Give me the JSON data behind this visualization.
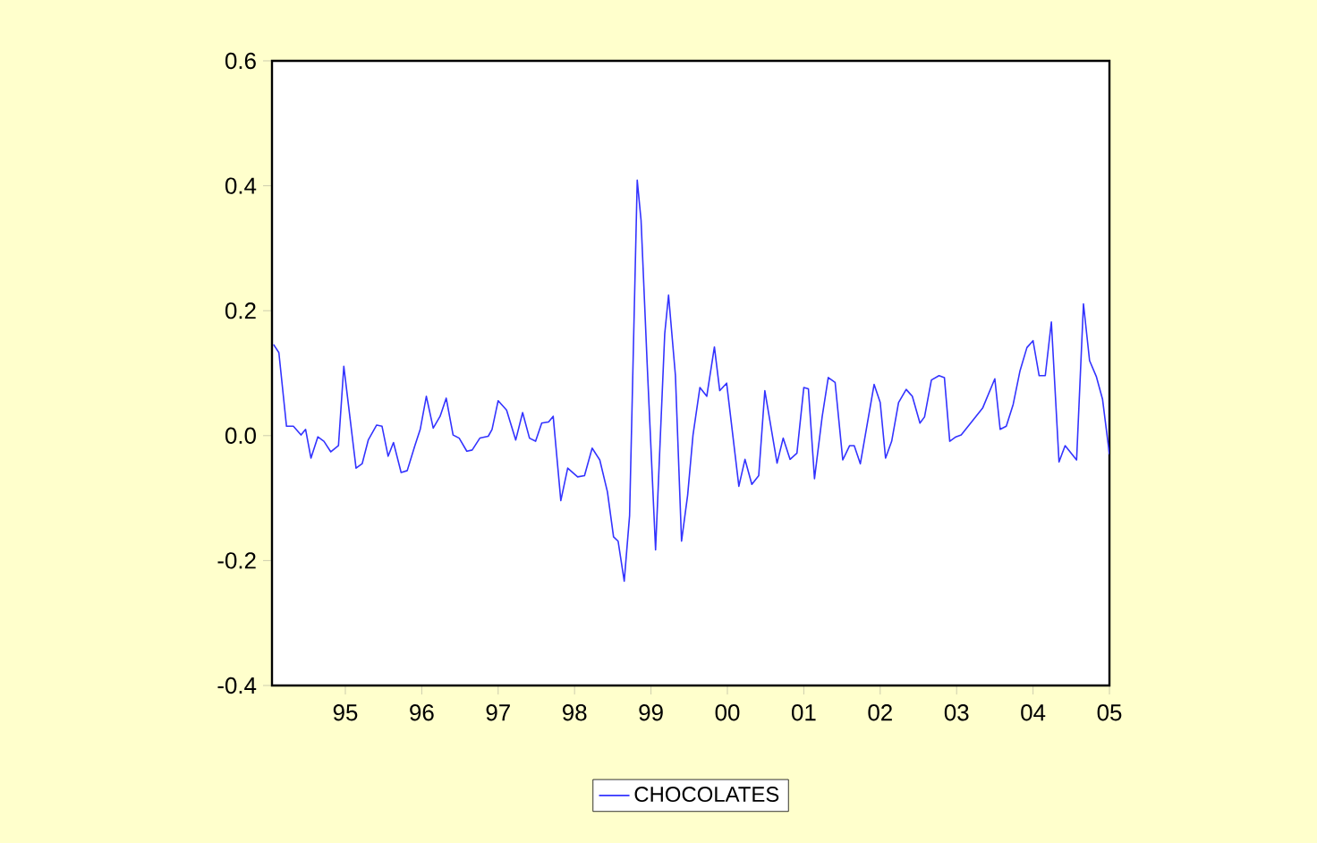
{
  "chart_data": {
    "type": "line",
    "x": [
      1994.06,
      1994.13,
      1994.23,
      1994.32,
      1994.42,
      1994.48,
      1994.55,
      1994.64,
      1994.72,
      1994.81,
      1994.91,
      1994.98,
      1995.14,
      1995.22,
      1995.3,
      1995.41,
      1995.48,
      1995.56,
      1995.63,
      1995.73,
      1995.81,
      1995.91,
      1995.98,
      1996.06,
      1996.15,
      1996.24,
      1996.32,
      1996.41,
      1996.49,
      1996.59,
      1996.66,
      1996.76,
      1996.87,
      1996.92,
      1997.0,
      1997.11,
      1997.23,
      1997.32,
      1997.41,
      1997.49,
      1997.57,
      1997.66,
      1997.72,
      1997.82,
      1997.91,
      1998.04,
      1998.13,
      1998.23,
      1998.33,
      1998.43,
      1998.51,
      1998.57,
      1998.65,
      1998.72,
      1998.76,
      1998.82,
      1998.87,
      1998.95,
      1999.06,
      1999.12,
      1999.18,
      1999.23,
      1999.32,
      1999.4,
      1999.48,
      1999.55,
      1999.64,
      1999.73,
      1999.83,
      1999.9,
      1999.99,
      2000.15,
      2000.23,
      2000.32,
      2000.41,
      2000.49,
      2000.65,
      2000.73,
      2000.82,
      2000.91,
      2001.0,
      2001.06,
      2001.14,
      2001.24,
      2001.32,
      2001.41,
      2001.51,
      2001.6,
      2001.66,
      2001.74,
      2001.92,
      2002.0,
      2002.07,
      2002.15,
      2002.24,
      2002.34,
      2002.42,
      2002.52,
      2002.58,
      2002.67,
      2002.77,
      2002.84,
      2002.91,
      2002.99,
      2003.06,
      2003.17,
      2003.34,
      2003.5,
      2003.57,
      2003.65,
      2003.74,
      2003.83,
      2003.92,
      2004.0,
      2004.08,
      2004.16,
      2004.24,
      2004.34,
      2004.42,
      2004.57,
      2004.66,
      2004.74,
      2004.83,
      2004.91,
      2005.0
    ],
    "series": [
      {
        "name": "CHOCOLATES",
        "color": "#3333ff",
        "values": [
          0.146,
          0.133,
          0.015,
          0.015,
          0.001,
          0.01,
          -0.036,
          -0.002,
          -0.009,
          -0.026,
          -0.016,
          0.111,
          -0.052,
          -0.045,
          -0.007,
          0.017,
          0.015,
          -0.033,
          -0.011,
          -0.059,
          -0.056,
          -0.016,
          0.01,
          0.063,
          0.012,
          0.031,
          0.06,
          0.001,
          -0.004,
          -0.025,
          -0.023,
          -0.004,
          -0.001,
          0.01,
          0.056,
          0.041,
          -0.007,
          0.037,
          -0.004,
          -0.009,
          0.02,
          0.022,
          0.031,
          -0.104,
          -0.052,
          -0.066,
          -0.064,
          -0.02,
          -0.039,
          -0.09,
          -0.162,
          -0.169,
          -0.233,
          -0.128,
          0.087,
          0.409,
          0.345,
          0.115,
          -0.183,
          -0.009,
          0.163,
          0.225,
          0.096,
          -0.169,
          -0.095,
          0.001,
          0.077,
          0.063,
          0.142,
          0.072,
          0.084,
          -0.081,
          -0.038,
          -0.078,
          -0.064,
          0.072,
          -0.044,
          -0.004,
          -0.038,
          -0.028,
          0.077,
          0.075,
          -0.069,
          0.03,
          0.093,
          0.085,
          -0.039,
          -0.016,
          -0.016,
          -0.045,
          0.082,
          0.053,
          -0.036,
          -0.009,
          0.053,
          0.074,
          0.063,
          0.02,
          0.03,
          0.089,
          0.096,
          0.093,
          -0.009,
          -0.002,
          0.001,
          0.018,
          0.044,
          0.091,
          0.01,
          0.015,
          0.05,
          0.104,
          0.141,
          0.152,
          0.096,
          0.096,
          0.182,
          -0.042,
          -0.016,
          -0.039,
          0.211,
          0.12,
          0.094,
          0.058,
          -0.03
        ]
      }
    ],
    "xlim": [
      1994.04,
      2005.0
    ],
    "xticks": [
      {
        "value": 1995,
        "label": "95"
      },
      {
        "value": 1996,
        "label": "96"
      },
      {
        "value": 1997,
        "label": "97"
      },
      {
        "value": 1998,
        "label": "98"
      },
      {
        "value": 1999,
        "label": "99"
      },
      {
        "value": 2000,
        "label": "00"
      },
      {
        "value": 2001,
        "label": "01"
      },
      {
        "value": 2002,
        "label": "02"
      },
      {
        "value": 2003,
        "label": "03"
      },
      {
        "value": 2004,
        "label": "04"
      },
      {
        "value": 2005,
        "label": "05"
      }
    ],
    "ylim": [
      -0.4,
      0.6
    ],
    "yticks": [
      {
        "value": -0.4,
        "label": "-0.4"
      },
      {
        "value": -0.2,
        "label": "-0.2"
      },
      {
        "value": 0.0,
        "label": "0.0"
      },
      {
        "value": 0.2,
        "label": "0.2"
      },
      {
        "value": 0.4,
        "label": "0.4"
      },
      {
        "value": 0.6,
        "label": "0.6"
      }
    ],
    "legend": "bottom",
    "marker": "none",
    "line_style": "solid"
  }
}
